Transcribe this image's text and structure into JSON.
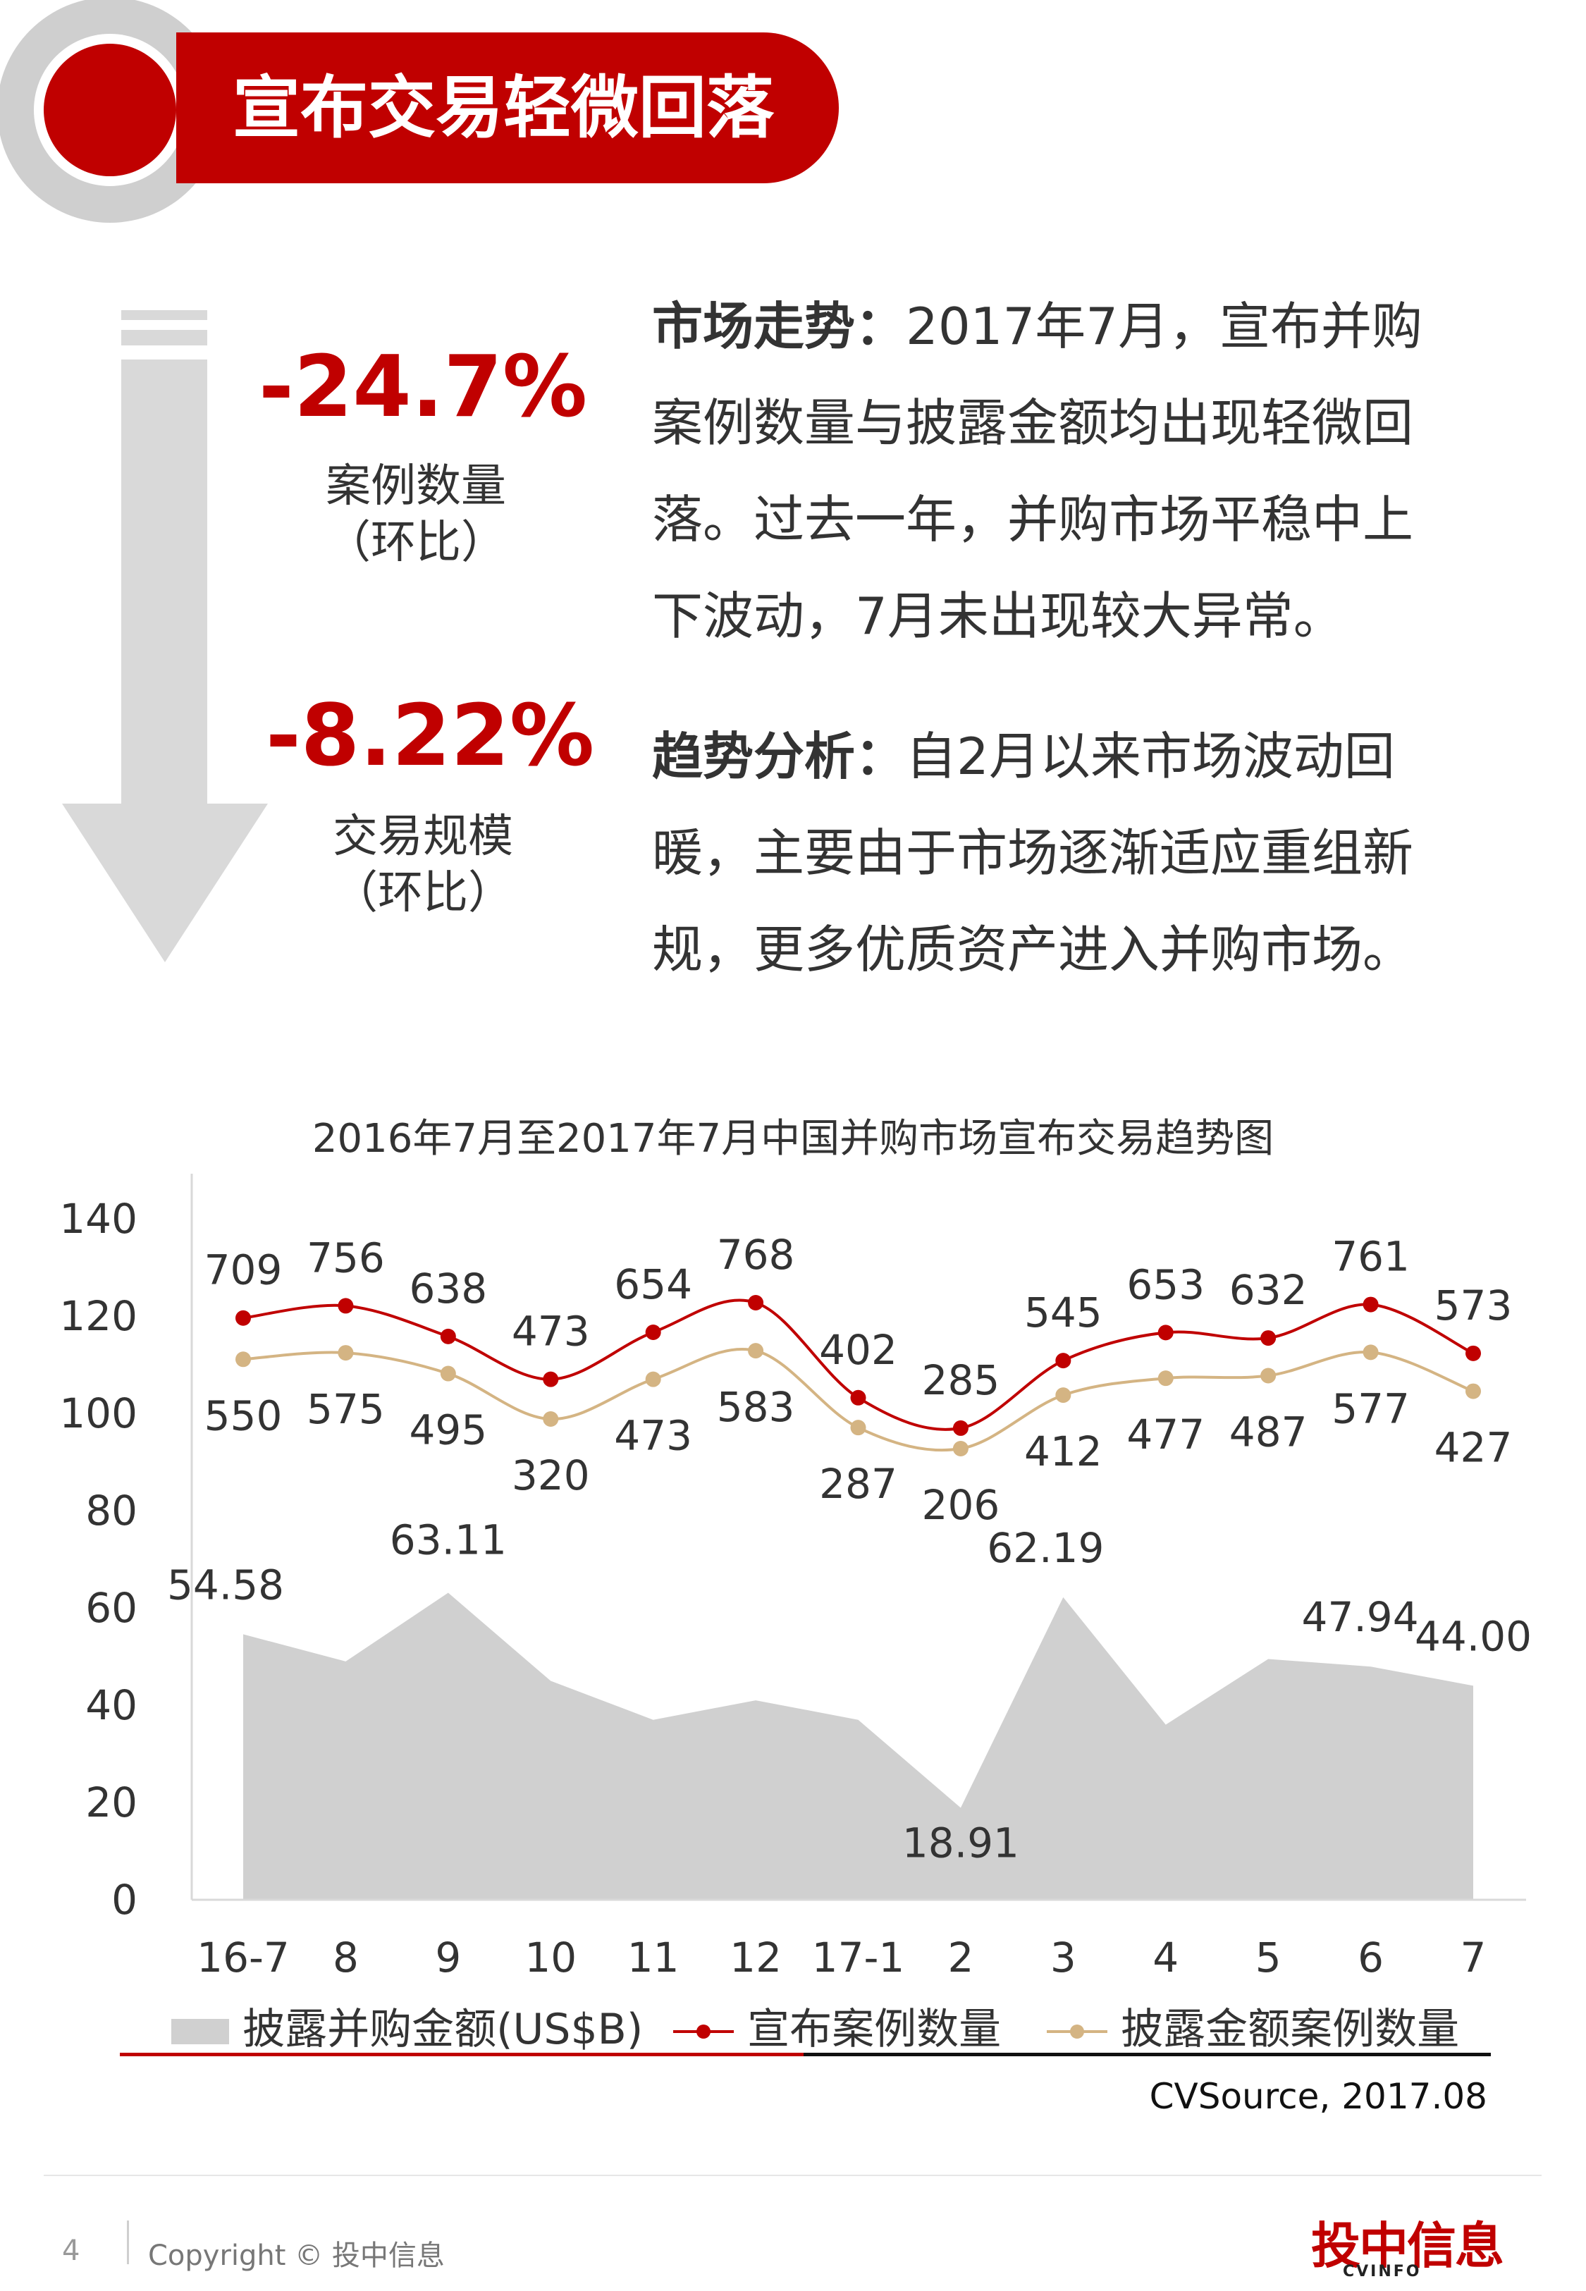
{
  "header": {
    "title": "宣布交易轻微回落"
  },
  "stats": [
    {
      "value": "-24.7%",
      "label": "案例数量",
      "sub": "（环比）"
    },
    {
      "value": "-8.22%",
      "label": "交易规模",
      "sub": "（环比）"
    }
  ],
  "paragraphs": [
    {
      "heading": "市场走势：",
      "lines": [
        "2017年7月，宣布并购",
        "案例数量与披露金额均出现轻微回",
        "落。过去一年，并购市场平稳中上",
        "下波动，7月未出现较大异常。"
      ]
    },
    {
      "heading": "趋势分析：",
      "lines": [
        "自2月以来市场波动回",
        "暖，主要由于市场逐渐适应重组新",
        "规，更多优质资产进入并购市场。"
      ]
    }
  ],
  "colors": {
    "accent": "#c00000",
    "gray": "#d0d0d0",
    "gold": "#d4b483"
  },
  "chart_data": {
    "type": "line",
    "title": "2016年7月至2017年7月中国并购市场宣布交易趋势图",
    "categories": [
      "16-7",
      "8",
      "9",
      "10",
      "11",
      "12",
      "17-1",
      "2",
      "3",
      "4",
      "5",
      "6",
      "7"
    ],
    "ylim": [
      0,
      140
    ],
    "yticks": [
      "0",
      "20",
      "40",
      "60",
      "80",
      "100",
      "120",
      "140"
    ],
    "grid": false,
    "series": [
      {
        "name": "披露并购金额(US$B)",
        "type": "area",
        "values": [
          54.58,
          49,
          63.11,
          45,
          37,
          41,
          37,
          18.91,
          62.19,
          36,
          49.5,
          47.94,
          44.0
        ],
        "labels": [
          "54.58",
          "",
          "63.11",
          "",
          "",
          "",
          "",
          "18.91",
          "62.19",
          "",
          "",
          "47.94",
          "44.00"
        ]
      },
      {
        "name": "宣布案例数量",
        "type": "line",
        "labels": [
          "709",
          "756",
          "638",
          "473",
          "654",
          "768",
          "402",
          "285",
          "545",
          "653",
          "632",
          "761",
          "573"
        ],
        "values": [
          709,
          756,
          638,
          473,
          654,
          768,
          402,
          285,
          545,
          653,
          632,
          761,
          573
        ]
      },
      {
        "name": "披露金额案例数量",
        "type": "line",
        "labels": [
          "550",
          "575",
          "495",
          "320",
          "473",
          "583",
          "287",
          "206",
          "412",
          "477",
          "487",
          "577",
          "427"
        ],
        "values": [
          550,
          575,
          495,
          320,
          473,
          583,
          287,
          206,
          412,
          477,
          487,
          577,
          427
        ]
      }
    ]
  },
  "source": "CVSource, 2017.08",
  "footer": {
    "page": "4",
    "copyright": "Copyright © 投中信息",
    "logo": "投中信息",
    "logo_sub": "CVINFO"
  }
}
